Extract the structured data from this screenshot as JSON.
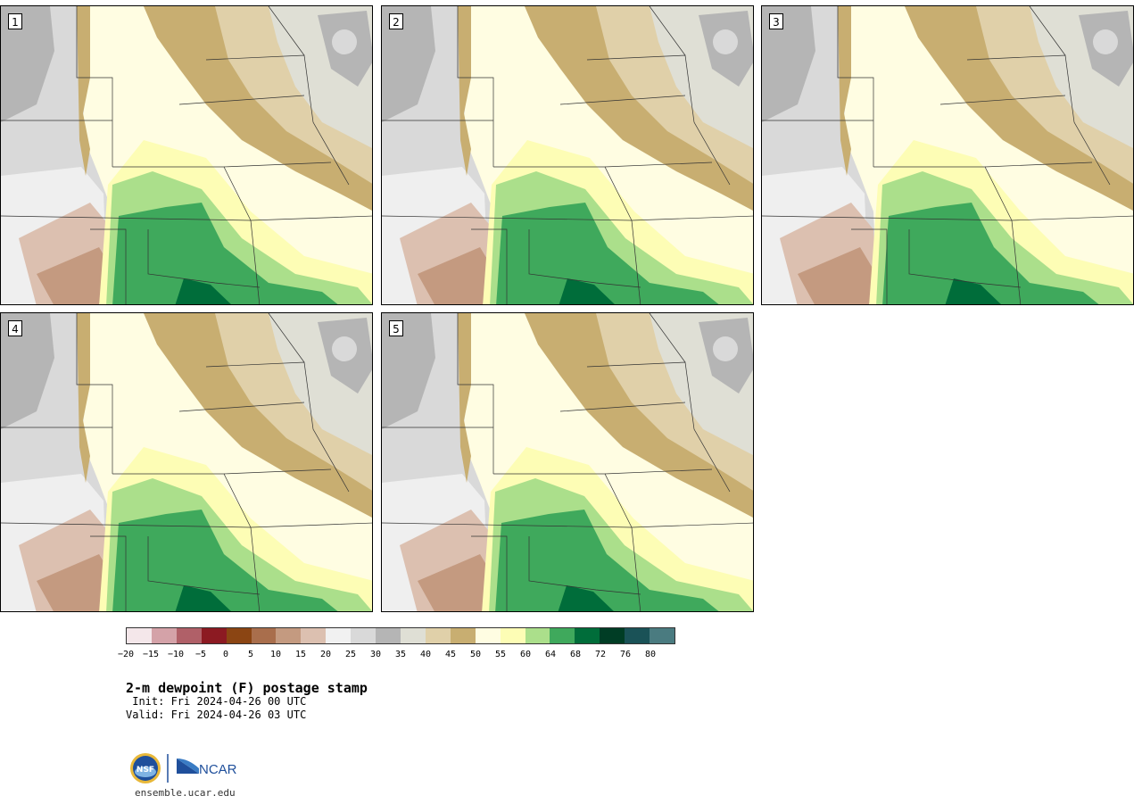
{
  "panels": [
    {
      "label": "1"
    },
    {
      "label": "2"
    },
    {
      "label": "3"
    },
    {
      "label": "4"
    },
    {
      "label": "5"
    }
  ],
  "colorbar": {
    "colors": [
      "#f4e7ea",
      "#d4a2a8",
      "#b06068",
      "#8c1a22",
      "#8b4513",
      "#a96e4c",
      "#c49a80",
      "#dcc0b0",
      "#f1f1f1",
      "#d9d9d9",
      "#b5b5b5",
      "#dfdfd5",
      "#e0d0a9",
      "#c8ae71",
      "#fffde2",
      "#fdfdb5",
      "#abdf8b",
      "#3fa95c",
      "#006d3a",
      "#003d25",
      "#1a5257",
      "#4a7b80"
    ],
    "tick_labels": [
      "−20",
      "−15",
      "−10",
      "−5",
      "0",
      "5",
      "10",
      "15",
      "20",
      "25",
      "30",
      "35",
      "40",
      "45",
      "50",
      "55",
      "60",
      "64",
      "68",
      "72",
      "76",
      "80"
    ]
  },
  "title": "2-m dewpoint (F) postage stamp",
  "init": " Init: Fri 2024-04-26 00 UTC",
  "valid": "Valid: Fri 2024-04-26 03 UTC",
  "logo_left_text": "NSF",
  "logo_right_text": "NCAR",
  "site": "ensemble.ucar.edu"
}
